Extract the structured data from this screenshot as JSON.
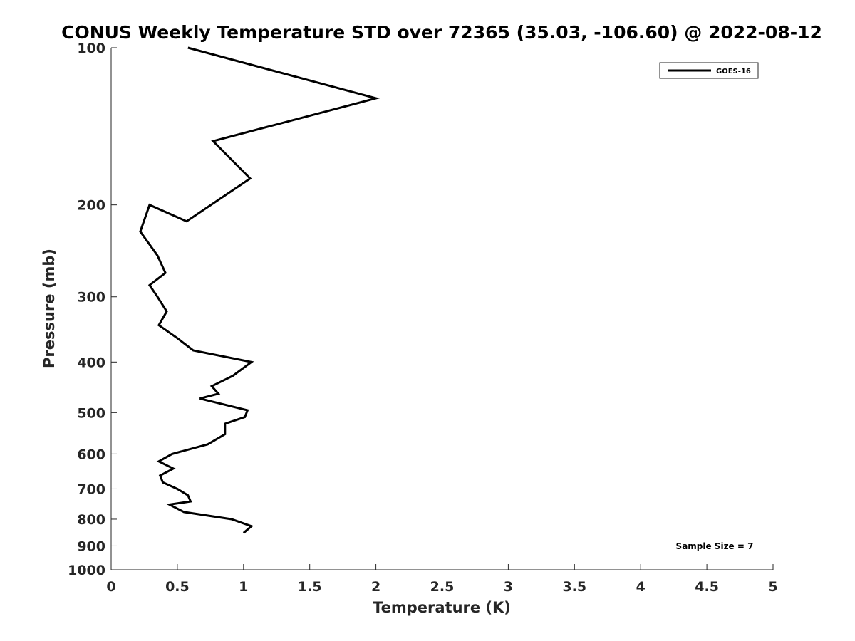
{
  "chart_data": {
    "type": "line",
    "title": "CONUS Weekly Temperature STD over 72365 (35.03, -106.60) @ 2022-08-12",
    "xlabel": "Temperature (K)",
    "ylabel": "Pressure (mb)",
    "xlim": [
      0,
      5
    ],
    "ylim": [
      100,
      1000
    ],
    "y_scale": "log",
    "y_reversed": true,
    "x_ticks": [
      "0",
      "0.5",
      "1",
      "1.5",
      "2",
      "2.5",
      "3",
      "3.5",
      "4",
      "4.5",
      "5"
    ],
    "y_ticks": [
      "100",
      "200",
      "300",
      "400",
      "500",
      "600",
      "700",
      "800",
      "900",
      "1000"
    ],
    "grid": false,
    "legend_position": "top-right",
    "annotation": "Sample Size = 7",
    "series": [
      {
        "name": "GOES-16",
        "color": "#000000",
        "points": [
          [
            0.58,
            100
          ],
          [
            2.0,
            125
          ],
          [
            0.77,
            151
          ],
          [
            1.05,
            178
          ],
          [
            0.57,
            215
          ],
          [
            0.29,
            200
          ],
          [
            0.22,
            225
          ],
          [
            0.35,
            250
          ],
          [
            0.41,
            270
          ],
          [
            0.29,
            285
          ],
          [
            0.35,
            300
          ],
          [
            0.42,
            320
          ],
          [
            0.36,
            340
          ],
          [
            0.5,
            360
          ],
          [
            0.62,
            380
          ],
          [
            1.06,
            400
          ],
          [
            0.92,
            425
          ],
          [
            0.76,
            445
          ],
          [
            0.81,
            460
          ],
          [
            0.67,
            470
          ],
          [
            1.03,
            495
          ],
          [
            1.01,
            510
          ],
          [
            0.86,
            525
          ],
          [
            0.86,
            550
          ],
          [
            0.73,
            575
          ],
          [
            0.46,
            600
          ],
          [
            0.36,
            620
          ],
          [
            0.47,
            640
          ],
          [
            0.37,
            660
          ],
          [
            0.39,
            680
          ],
          [
            0.5,
            700
          ],
          [
            0.58,
            720
          ],
          [
            0.6,
            740
          ],
          [
            0.44,
            750
          ],
          [
            0.55,
            775
          ],
          [
            0.91,
            800
          ],
          [
            1.06,
            825
          ],
          [
            1.0,
            850
          ]
        ]
      }
    ]
  }
}
